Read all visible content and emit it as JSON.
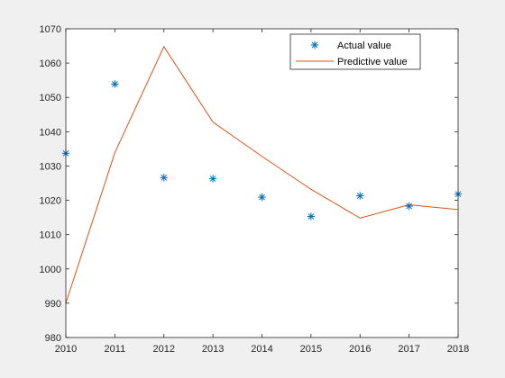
{
  "chart_data": {
    "type": "line",
    "title": "",
    "xlabel": "",
    "ylabel": "",
    "x": [
      2010,
      2011,
      2012,
      2013,
      2014,
      2015,
      2016,
      2017,
      2018
    ],
    "xlim": [
      2010,
      2018
    ],
    "ylim": [
      980,
      1070
    ],
    "xticks": [
      "2010",
      "2011",
      "2012",
      "2013",
      "2014",
      "2015",
      "2016",
      "2017",
      "2018"
    ],
    "yticks": [
      "980",
      "990",
      "1000",
      "1010",
      "1020",
      "1030",
      "1040",
      "1050",
      "1060",
      "1070"
    ],
    "grid": false,
    "legend_position": "top-right",
    "series": [
      {
        "name": "Actual value",
        "style": "markers",
        "marker": "asterisk",
        "color": "#0072bd",
        "values": [
          1033.7,
          1053.9,
          1026.6,
          1026.3,
          1020.9,
          1015.3,
          1021.3,
          1018.3,
          1021.8
        ]
      },
      {
        "name": "Predictive value",
        "style": "line",
        "color": "#d95319",
        "values": [
          990.0,
          1033.9,
          1064.8,
          1042.8,
          1032.8,
          1023.2,
          1014.8,
          1018.7,
          1017.3
        ]
      }
    ]
  }
}
